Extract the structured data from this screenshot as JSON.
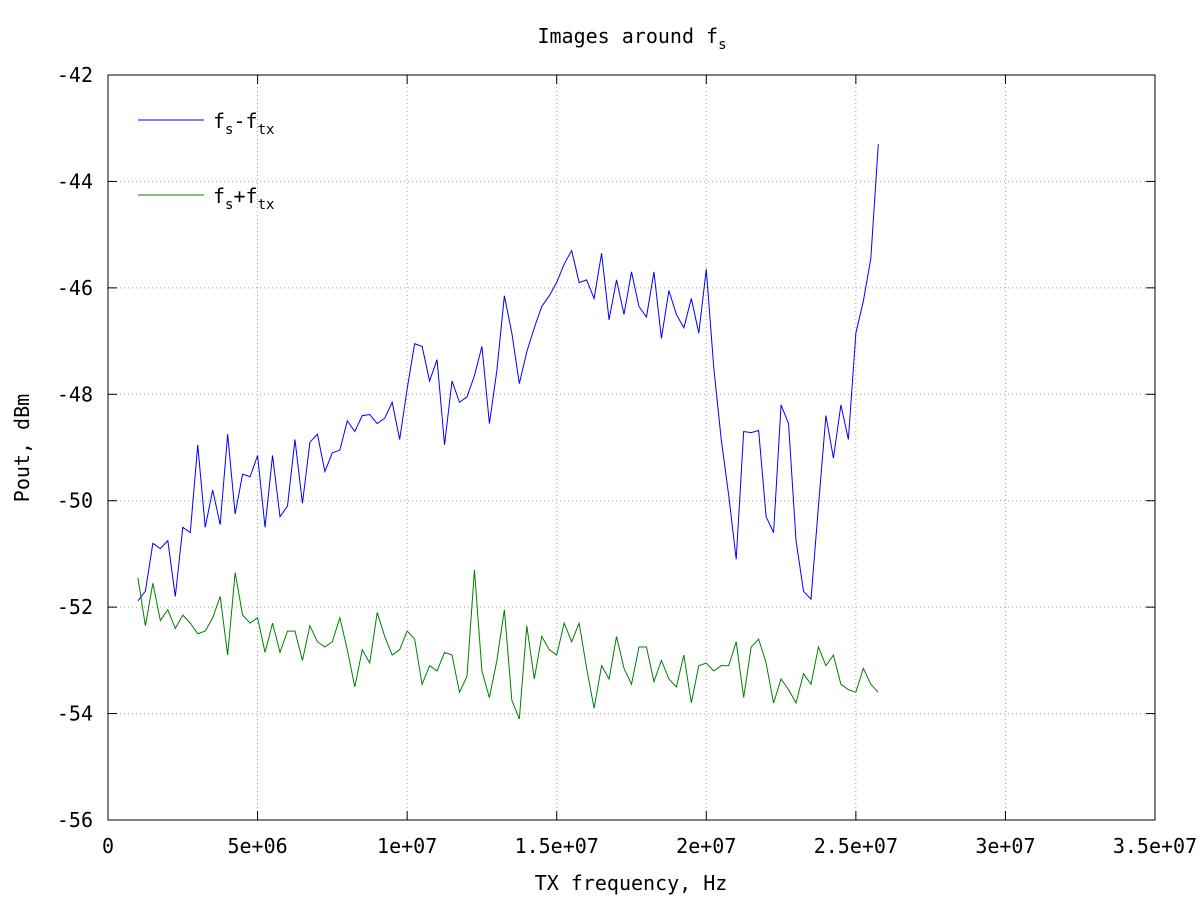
{
  "chart_data": {
    "type": "line",
    "title": "Images around f",
    "title_sub": "s",
    "xlabel": "TX frequency, Hz",
    "ylabel": "Pout, dBm",
    "xlim": [
      0,
      35000000
    ],
    "ylim": [
      -56,
      -42
    ],
    "xticks": [
      0,
      5000000,
      10000000,
      15000000,
      20000000,
      25000000,
      30000000,
      35000000
    ],
    "xtick_labels": [
      "0",
      "5e+06",
      "1e+07",
      "1.5e+07",
      "2e+07",
      "2.5e+07",
      "3e+07",
      "3.5e+07"
    ],
    "yticks": [
      -56,
      -54,
      -52,
      -50,
      -48,
      -46,
      -44,
      -42
    ],
    "ytick_labels": [
      "-56",
      "-54",
      "-52",
      "-50",
      "-48",
      "-46",
      "-44",
      "-42"
    ],
    "grid": true,
    "legend_position": "top-left",
    "x_start": 1000000,
    "x_step": 250000,
    "series": [
      {
        "name_main": "f",
        "name_sub1": "s",
        "name_op": "-f",
        "name_sub2": "tx",
        "color": "#0000ff",
        "values": [
          -51.88,
          -51.7,
          -50.8,
          -50.9,
          -50.75,
          -51.8,
          -50.5,
          -50.6,
          -48.95,
          -50.5,
          -49.8,
          -50.45,
          -48.75,
          -50.25,
          -49.5,
          -49.55,
          -49.15,
          -50.5,
          -49.15,
          -50.3,
          -50.1,
          -48.85,
          -50.05,
          -48.9,
          -48.75,
          -49.45,
          -49.1,
          -49.05,
          -48.5,
          -48.7,
          -48.4,
          -48.38,
          -48.55,
          -48.45,
          -48.15,
          -48.85,
          -47.9,
          -47.05,
          -47.1,
          -47.75,
          -47.35,
          -48.95,
          -47.75,
          -48.15,
          -48.05,
          -47.65,
          -47.1,
          -48.55,
          -47.55,
          -46.15,
          -46.85,
          -47.8,
          -47.2,
          -46.75,
          -46.35,
          -46.15,
          -45.9,
          -45.55,
          -45.3,
          -45.9,
          -45.85,
          -46.2,
          -45.35,
          -46.6,
          -45.85,
          -46.5,
          -45.7,
          -46.35,
          -46.55,
          -45.7,
          -46.95,
          -46.05,
          -46.5,
          -46.75,
          -46.2,
          -46.85,
          -45.65,
          -47.5,
          -48.85,
          -49.9,
          -51.1,
          -48.7,
          -48.72,
          -48.68,
          -50.3,
          -50.6,
          -48.2,
          -48.55,
          -50.75,
          -51.7,
          -51.85,
          -50.1,
          -48.4,
          -49.2,
          -48.2,
          -48.85,
          -46.85,
          -46.25,
          -45.45,
          -43.3
        ]
      },
      {
        "name_main": "f",
        "name_sub1": "s",
        "name_op": "+f",
        "name_sub2": "tx",
        "color": "#008000",
        "values": [
          -51.45,
          -52.35,
          -51.55,
          -52.25,
          -52.05,
          -52.4,
          -52.15,
          -52.3,
          -52.5,
          -52.45,
          -52.2,
          -51.8,
          -52.9,
          -51.35,
          -52.15,
          -52.3,
          -52.2,
          -52.85,
          -52.3,
          -52.85,
          -52.45,
          -52.45,
          -53.0,
          -52.35,
          -52.65,
          -52.75,
          -52.65,
          -52.2,
          -52.8,
          -53.5,
          -52.8,
          -53.05,
          -52.1,
          -52.55,
          -52.9,
          -52.8,
          -52.45,
          -52.6,
          -53.45,
          -53.1,
          -53.2,
          -52.85,
          -52.9,
          -53.6,
          -53.3,
          -51.3,
          -53.2,
          -53.7,
          -53.0,
          -52.05,
          -53.75,
          -54.1,
          -52.35,
          -53.35,
          -52.55,
          -52.8,
          -52.9,
          -52.3,
          -52.65,
          -52.3,
          -53.15,
          -53.9,
          -53.1,
          -53.35,
          -52.55,
          -53.15,
          -53.45,
          -52.75,
          -52.75,
          -53.4,
          -53.0,
          -53.35,
          -53.5,
          -52.9,
          -53.8,
          -53.1,
          -53.05,
          -53.2,
          -53.1,
          -53.1,
          -52.65,
          -53.7,
          -52.75,
          -52.6,
          -53.05,
          -53.8,
          -53.35,
          -53.55,
          -53.8,
          -53.25,
          -53.45,
          -52.75,
          -53.1,
          -52.9,
          -53.45,
          -53.55,
          -53.6,
          -53.15,
          -53.45,
          -53.6
        ]
      }
    ]
  }
}
